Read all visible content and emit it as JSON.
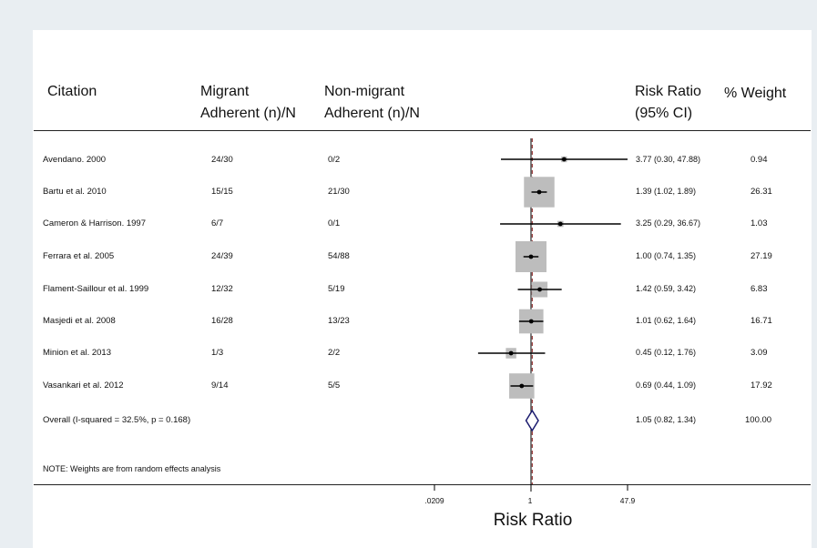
{
  "headers": {
    "citation": "Citation",
    "migrant_line1": "Migrant",
    "migrant_line2": "Adherent (n)/N",
    "nonmigrant_line1": "Non-migrant",
    "nonmigrant_line2": "Adherent (n)/N",
    "rr_line1": "Risk Ratio",
    "rr_line2": "(95% CI)",
    "weight": "% Weight"
  },
  "rows": [
    {
      "citation": "Avendano. 2000",
      "migrant": "24/30",
      "nonmigrant": "0/2",
      "rr_text": "3.77 (0.30, 47.88)",
      "weight": "0.94"
    },
    {
      "citation": "Bartu et al. 2010",
      "migrant": "15/15",
      "nonmigrant": "21/30",
      "rr_text": "1.39 (1.02, 1.89)",
      "weight": "26.31"
    },
    {
      "citation": "Cameron & Harrison. 1997",
      "migrant": "6/7",
      "nonmigrant": "0/1",
      "rr_text": "3.25 (0.29, 36.67)",
      "weight": "1.03"
    },
    {
      "citation": "Ferrara et al. 2005",
      "migrant": "24/39",
      "nonmigrant": "54/88",
      "rr_text": "1.00 (0.74, 1.35)",
      "weight": "27.19"
    },
    {
      "citation": "Flament-Saillour et al. 1999",
      "migrant": "12/32",
      "nonmigrant": "5/19",
      "rr_text": "1.42 (0.59, 3.42)",
      "weight": "6.83"
    },
    {
      "citation": "Masjedi et al. 2008",
      "migrant": "16/28",
      "nonmigrant": "13/23",
      "rr_text": "1.01 (0.62, 1.64)",
      "weight": "16.71"
    },
    {
      "citation": "Minion et al. 2013",
      "migrant": "1/3",
      "nonmigrant": "2/2",
      "rr_text": "0.45 (0.12, 1.76)",
      "weight": "3.09"
    },
    {
      "citation": "Vasankari et al. 2012",
      "migrant": "9/14",
      "nonmigrant": "5/5",
      "rr_text": "0.69 (0.44, 1.09)",
      "weight": "17.92"
    }
  ],
  "overall": {
    "citation": "Overall  (I-squared = 32.5%, p = 0.168)",
    "rr_text": "1.05 (0.82, 1.34)",
    "weight": "100.00"
  },
  "note": "NOTE: Weights are from random effects analysis",
  "chart_data": {
    "type": "forest",
    "xlabel": "Risk Ratio",
    "x_scale": "log",
    "xlim": [
      0.0209,
      47.9
    ],
    "x_ticks": [
      0.0209,
      1,
      47.9
    ],
    "x_tick_labels": [
      ".0209",
      "1",
      "47.9"
    ],
    "null_line": 1,
    "overall_line": 1.05,
    "studies": [
      {
        "name": "Avendano. 2000",
        "rr": 3.77,
        "lower": 0.3,
        "upper": 47.88,
        "weight": 0.94
      },
      {
        "name": "Bartu et al. 2010",
        "rr": 1.39,
        "lower": 1.02,
        "upper": 1.89,
        "weight": 26.31
      },
      {
        "name": "Cameron & Harrison. 1997",
        "rr": 3.25,
        "lower": 0.29,
        "upper": 36.67,
        "weight": 1.03
      },
      {
        "name": "Ferrara et al. 2005",
        "rr": 1.0,
        "lower": 0.74,
        "upper": 1.35,
        "weight": 27.19
      },
      {
        "name": "Flament-Saillour et al. 1999",
        "rr": 1.42,
        "lower": 0.59,
        "upper": 3.42,
        "weight": 6.83
      },
      {
        "name": "Masjedi et al. 2008",
        "rr": 1.01,
        "lower": 0.62,
        "upper": 1.64,
        "weight": 16.71
      },
      {
        "name": "Minion et al. 2013",
        "rr": 0.45,
        "lower": 0.12,
        "upper": 1.76,
        "weight": 3.09
      },
      {
        "name": "Vasankari et al. 2012",
        "rr": 0.69,
        "lower": 0.44,
        "upper": 1.09,
        "weight": 17.92
      }
    ],
    "overall": {
      "rr": 1.05,
      "lower": 0.82,
      "upper": 1.34,
      "weight": 100.0
    },
    "colors": {
      "box": "#bdbdbd",
      "diamond": "#1a1a6e",
      "overall_line": "#8b1c1c",
      "ci": "#000000"
    }
  }
}
